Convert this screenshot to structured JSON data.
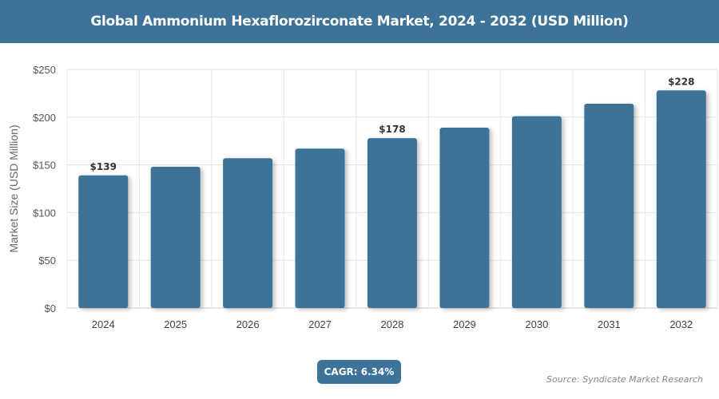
{
  "title": "Global Ammonium Hexaflorozirconate Market, 2024 - 2032 (USD Million)",
  "cagr_label": "CAGR: 6.34%",
  "source": "Source: Syndicate Market Research",
  "colors": {
    "bar": "#3d7299",
    "header": "#3d7299"
  },
  "chart_data": {
    "type": "bar",
    "title": "Global Ammonium Hexaflorozirconate Market, 2024 - 2032 (USD Million)",
    "categories": [
      "2024",
      "2025",
      "2026",
      "2027",
      "2028",
      "2029",
      "2030",
      "2031",
      "2032"
    ],
    "values": [
      139,
      148,
      157,
      167,
      178,
      189,
      201,
      214,
      228
    ],
    "data_labels": {
      "2024": "$139",
      "2028": "$178",
      "2032": "$228"
    },
    "xlabel": "",
    "ylabel": "Market Size (USD Million)",
    "ylim": [
      0,
      250
    ],
    "yticks": [
      "$0",
      "$50",
      "$100",
      "$150",
      "$200",
      "$250"
    ],
    "grid": true
  }
}
